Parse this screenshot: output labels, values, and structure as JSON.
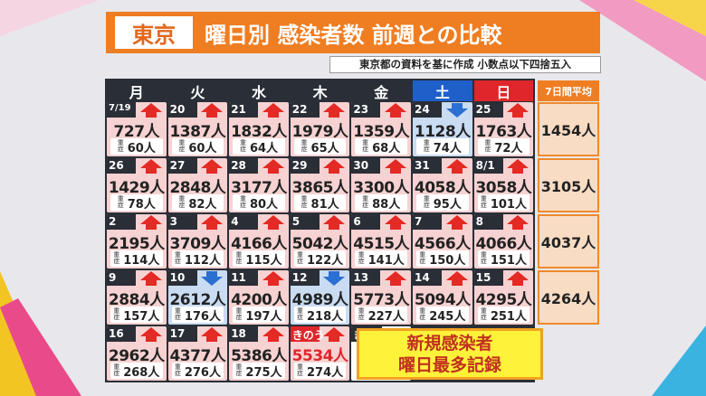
{
  "header": {
    "region": "東京",
    "title": "曜日別 感染者数 前週との比較",
    "note": "東京都の資料を基に作成 小数点以下四捨五入"
  },
  "table": {
    "columns": [
      "月",
      "火",
      "水",
      "木",
      "金",
      "土",
      "日"
    ],
    "average_header": "7日間平均",
    "severe_label": "重症",
    "weeks": [
      {
        "days": [
          {
            "date": "7/19",
            "cases": "727人",
            "severe": "60人",
            "trend": "up"
          },
          {
            "date": "20",
            "cases": "1387人",
            "severe": "60人",
            "trend": "up"
          },
          {
            "date": "21",
            "cases": "1832人",
            "severe": "64人",
            "trend": "up"
          },
          {
            "date": "22",
            "cases": "1979人",
            "severe": "65人",
            "trend": "up"
          },
          {
            "date": "23",
            "cases": "1359人",
            "severe": "68人",
            "trend": "up"
          },
          {
            "date": "24",
            "cases": "1128人",
            "severe": "74人",
            "trend": "down"
          },
          {
            "date": "25",
            "cases": "1763人",
            "severe": "72人",
            "trend": "up"
          }
        ],
        "average": "1454人"
      },
      {
        "days": [
          {
            "date": "26",
            "cases": "1429人",
            "severe": "78人",
            "trend": "up"
          },
          {
            "date": "27",
            "cases": "2848人",
            "severe": "82人",
            "trend": "up"
          },
          {
            "date": "28",
            "cases": "3177人",
            "severe": "80人",
            "trend": "up"
          },
          {
            "date": "29",
            "cases": "3865人",
            "severe": "81人",
            "trend": "up"
          },
          {
            "date": "30",
            "cases": "3300人",
            "severe": "88人",
            "trend": "up"
          },
          {
            "date": "31",
            "cases": "4058人",
            "severe": "95人",
            "trend": "up"
          },
          {
            "date": "8/1",
            "cases": "3058人",
            "severe": "101人",
            "trend": "up"
          }
        ],
        "average": "3105人"
      },
      {
        "days": [
          {
            "date": "2",
            "cases": "2195人",
            "severe": "114人",
            "trend": "up"
          },
          {
            "date": "3",
            "cases": "3709人",
            "severe": "112人",
            "trend": "up"
          },
          {
            "date": "4",
            "cases": "4166人",
            "severe": "115人",
            "trend": "up"
          },
          {
            "date": "5",
            "cases": "5042人",
            "severe": "122人",
            "trend": "up"
          },
          {
            "date": "6",
            "cases": "4515人",
            "severe": "141人",
            "trend": "up"
          },
          {
            "date": "7",
            "cases": "4566人",
            "severe": "150人",
            "trend": "up"
          },
          {
            "date": "8",
            "cases": "4066人",
            "severe": "151人",
            "trend": "up"
          }
        ],
        "average": "4037人"
      },
      {
        "days": [
          {
            "date": "9",
            "cases": "2884人",
            "severe": "157人",
            "trend": "up"
          },
          {
            "date": "10",
            "cases": "2612人",
            "severe": "176人",
            "trend": "down"
          },
          {
            "date": "11",
            "cases": "4200人",
            "severe": "197人",
            "trend": "up"
          },
          {
            "date": "12",
            "cases": "4989人",
            "severe": "218人",
            "trend": "down"
          },
          {
            "date": "13",
            "cases": "5773人",
            "severe": "227人",
            "trend": "up"
          },
          {
            "date": "14",
            "cases": "5094人",
            "severe": "245人",
            "trend": "up"
          },
          {
            "date": "15",
            "cases": "4295人",
            "severe": "251人",
            "trend": "up"
          }
        ],
        "average": "4264人"
      },
      {
        "days": [
          {
            "date": "16",
            "cases": "2962人",
            "severe": "268人",
            "trend": "up"
          },
          {
            "date": "17",
            "cases": "4377人",
            "severe": "276人",
            "trend": "up"
          },
          {
            "date": "18",
            "cases": "5386人",
            "severe": "275人",
            "trend": "up"
          },
          {
            "date": "きのう",
            "cases": "5534人",
            "severe": "274人",
            "trend": "up",
            "highlight": true
          },
          {
            "date": "きょう"
          }
        ]
      }
    ]
  },
  "callout": [
    "新規感染者",
    "曜日最多記録"
  ]
}
